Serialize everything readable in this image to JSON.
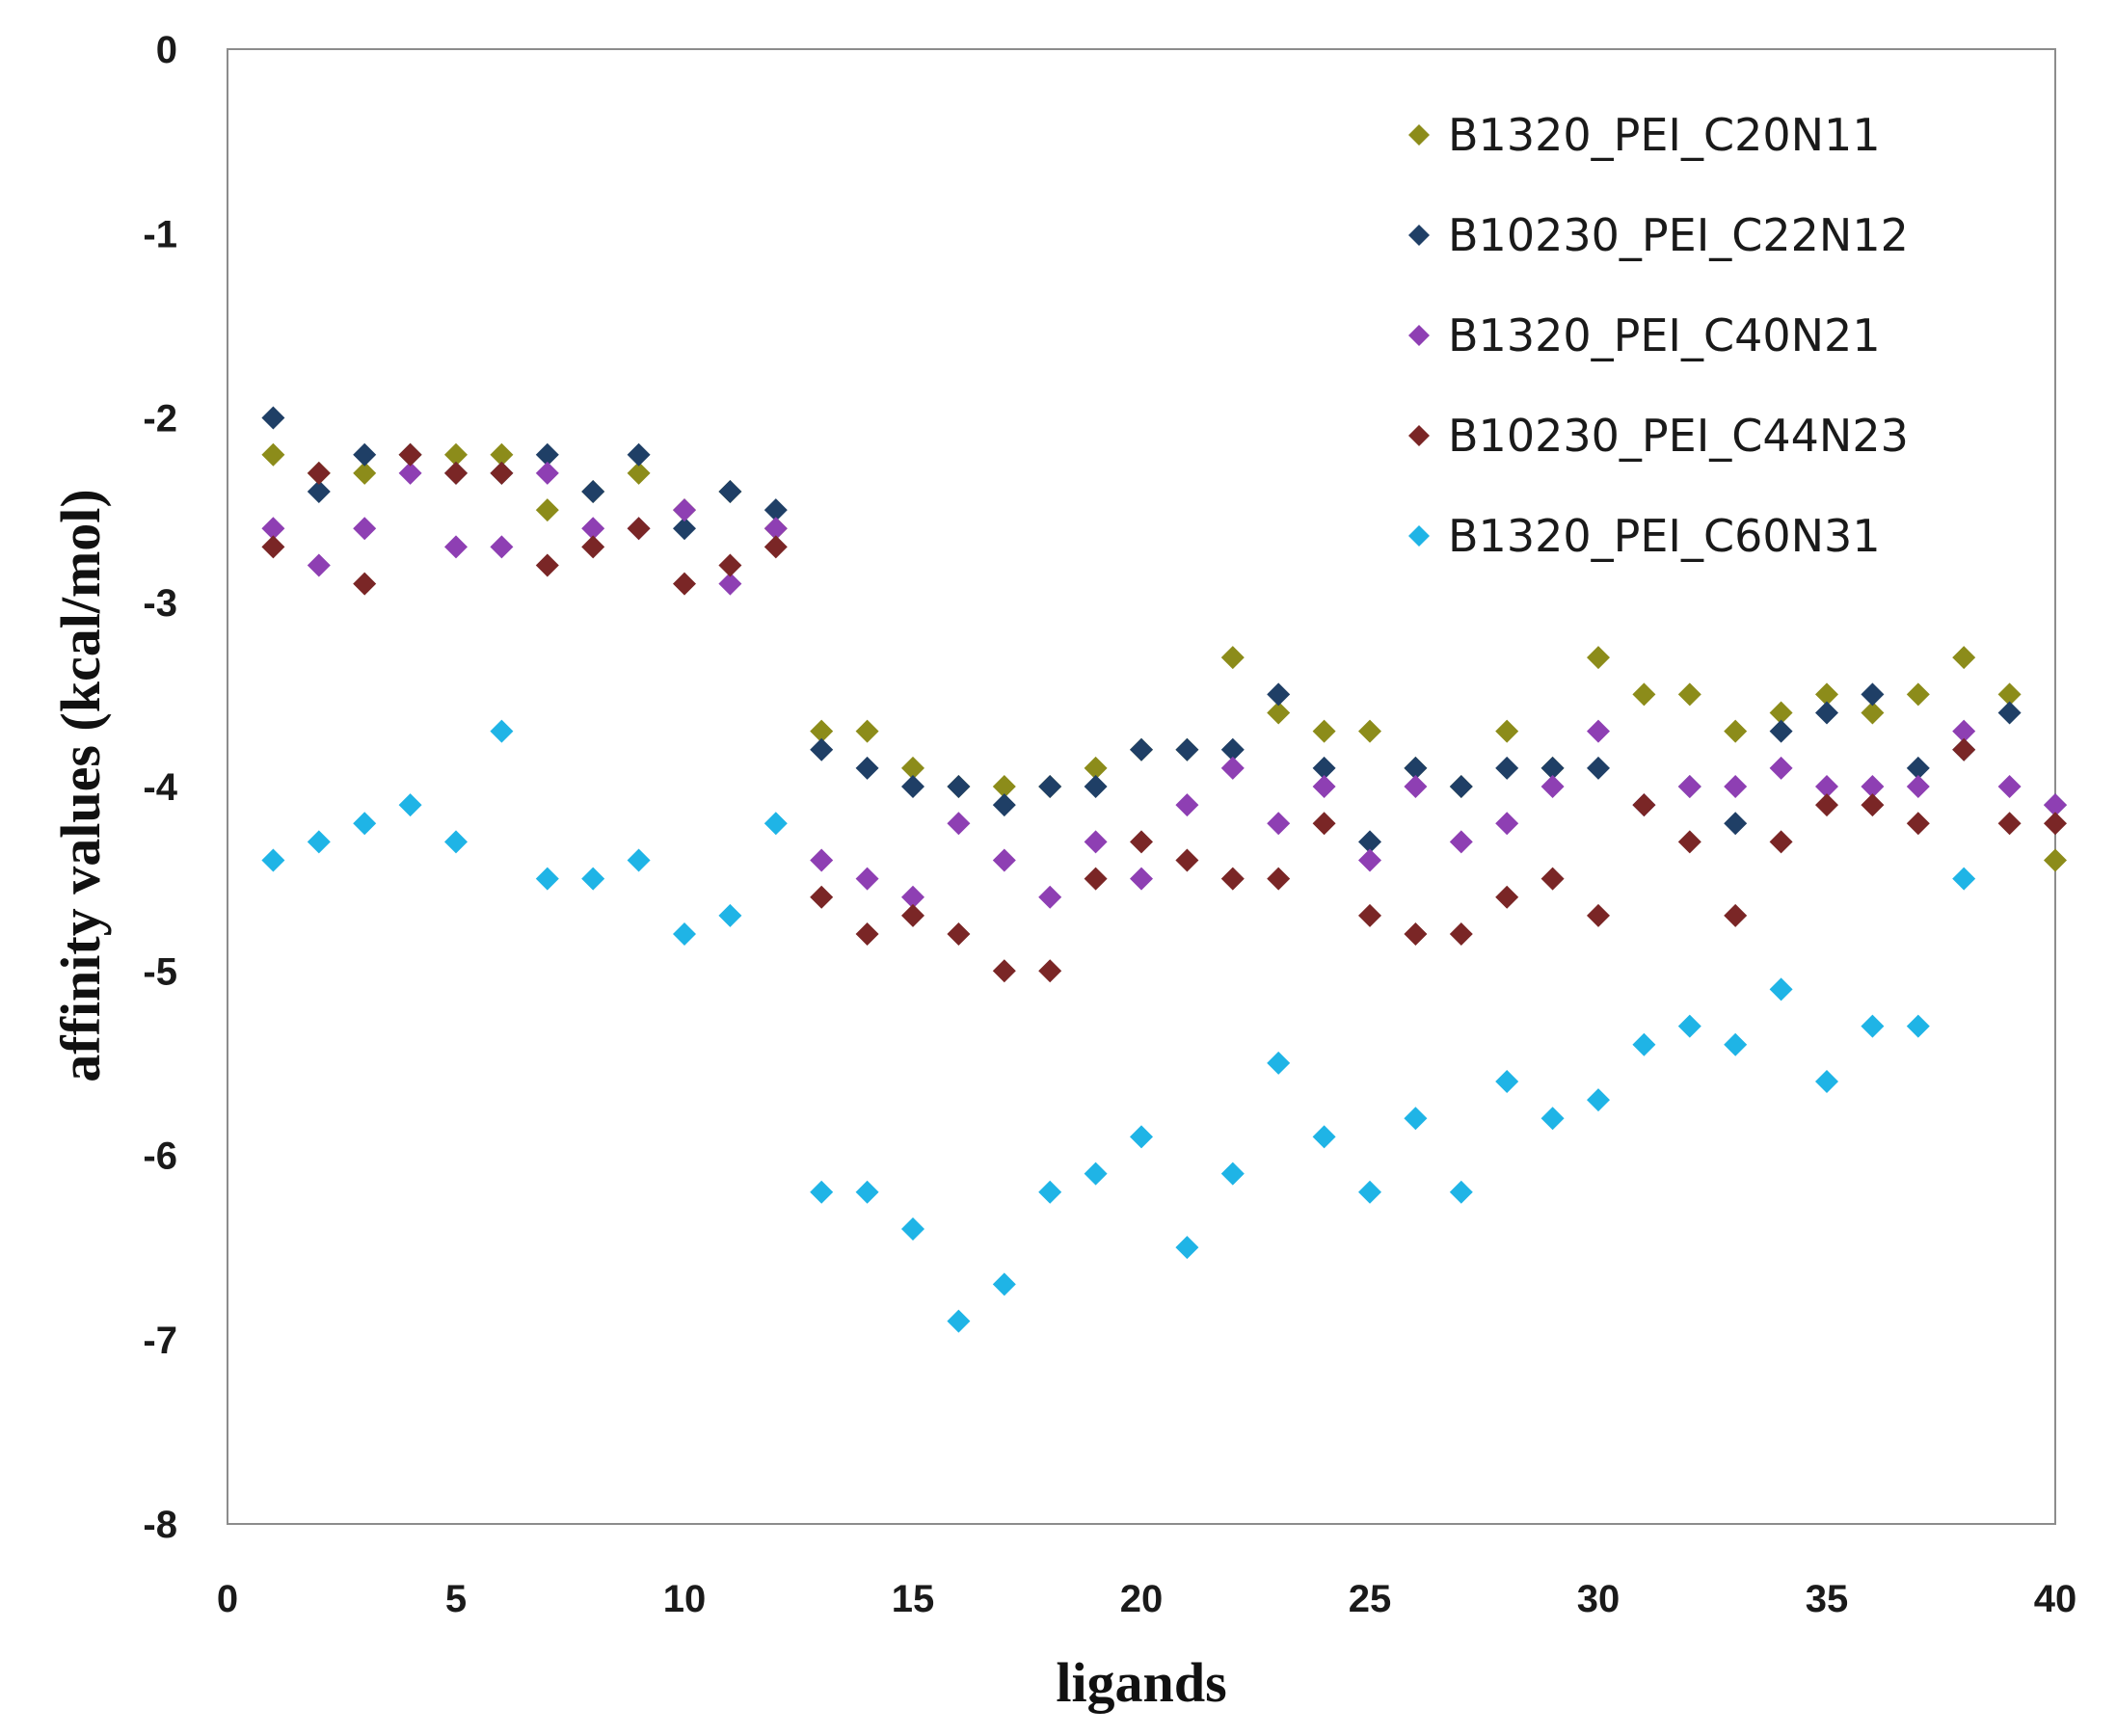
{
  "chart_data": {
    "type": "scatter",
    "title": "",
    "xlabel": "ligands",
    "ylabel": "affinity values (kcal/mol)",
    "xlim": [
      0,
      40
    ],
    "ylim": [
      -8,
      0
    ],
    "xticks": [
      0,
      5,
      10,
      15,
      20,
      25,
      30,
      35,
      40
    ],
    "yticks": [
      0,
      -1,
      -2,
      -3,
      -4,
      -5,
      -6,
      -7,
      -8
    ],
    "grid": false,
    "legend_position": "top-right",
    "marker": "diamond",
    "x": [
      1,
      2,
      3,
      4,
      5,
      6,
      7,
      8,
      9,
      10,
      11,
      12,
      13,
      14,
      15,
      16,
      17,
      18,
      19,
      20,
      21,
      22,
      23,
      24,
      25,
      26,
      27,
      28,
      29,
      30,
      31,
      32,
      33,
      34,
      35,
      36,
      37,
      38,
      39,
      40
    ],
    "series": [
      {
        "name": "B1320_PEI_C20N11",
        "color": "#8c8c1a",
        "values": [
          -2.2,
          -2.3,
          -2.3,
          -2.2,
          -2.2,
          -2.2,
          -2.5,
          -2.4,
          -2.3,
          -2.5,
          -2.4,
          -2.6,
          -3.7,
          -3.7,
          -3.9,
          -4.0,
          -4.0,
          -4.0,
          -3.9,
          -3.8,
          -3.8,
          -3.3,
          -3.6,
          -3.7,
          -3.7,
          -3.9,
          -4.0,
          -3.7,
          -3.9,
          -3.3,
          -3.5,
          -3.5,
          -3.7,
          -3.6,
          -3.5,
          -3.6,
          -3.5,
          -3.3,
          -3.5,
          -4.4
        ]
      },
      {
        "name": "B10230_PEI_C22N12",
        "color": "#1f3f66",
        "values": [
          -2.0,
          -2.4,
          -2.2,
          -2.2,
          -2.3,
          -2.3,
          -2.2,
          -2.4,
          -2.2,
          -2.6,
          -2.4,
          -2.5,
          -3.8,
          -3.9,
          -4.0,
          -4.0,
          -4.1,
          -4.0,
          -4.0,
          -3.8,
          -3.8,
          -3.8,
          -3.5,
          -3.9,
          -4.3,
          -3.9,
          -4.0,
          -3.9,
          -3.9,
          -3.9,
          -4.1,
          -4.0,
          -4.2,
          -3.7,
          -3.6,
          -3.5,
          -3.9,
          -3.8,
          -3.6,
          -4.1
        ]
      },
      {
        "name": "B1320_PEI_C40N21",
        "color": "#8e3fb3",
        "values": [
          -2.6,
          -2.8,
          -2.6,
          -2.3,
          -2.7,
          -2.7,
          -2.3,
          -2.6,
          -2.6,
          -2.5,
          -2.9,
          -2.6,
          -4.4,
          -4.5,
          -4.6,
          -4.2,
          -4.4,
          -4.6,
          -4.3,
          -4.5,
          -4.1,
          -3.9,
          -4.2,
          -4.0,
          -4.4,
          -4.0,
          -4.3,
          -4.2,
          -4.0,
          -3.7,
          -4.1,
          -4.0,
          -4.0,
          -3.9,
          -4.0,
          -4.0,
          -4.0,
          -3.7,
          -4.0,
          -4.1
        ]
      },
      {
        "name": "B10230_PEI_C44N23",
        "color": "#7a2626",
        "values": [
          -2.7,
          -2.3,
          -2.9,
          -2.2,
          -2.3,
          -2.3,
          -2.8,
          -2.7,
          -2.6,
          -2.9,
          -2.8,
          -2.7,
          -4.6,
          -4.8,
          -4.7,
          -4.8,
          -5.0,
          -5.0,
          -4.5,
          -4.3,
          -4.4,
          -4.5,
          -4.5,
          -4.2,
          -4.7,
          -4.8,
          -4.8,
          -4.6,
          -4.5,
          -4.7,
          -4.1,
          -4.3,
          -4.7,
          -4.3,
          -4.1,
          -4.1,
          -4.2,
          -3.8,
          -4.2,
          -4.2
        ]
      },
      {
        "name": "B1320_PEI_C60N31",
        "color": "#1fb4e6",
        "values": [
          -4.4,
          -4.3,
          -4.2,
          -4.1,
          -4.3,
          -3.7,
          -4.5,
          -4.5,
          -4.4,
          -4.8,
          -4.7,
          -4.2,
          -6.2,
          -6.2,
          -6.4,
          -6.9,
          -6.7,
          -6.2,
          -6.1,
          -5.9,
          -6.5,
          -6.1,
          -5.5,
          -5.9,
          -6.2,
          -5.8,
          -6.2,
          -5.6,
          -5.8,
          -5.7,
          -5.4,
          -5.3,
          -5.4,
          -5.1,
          -5.6,
          -5.3,
          -5.3,
          -4.5,
          null,
          null
        ]
      }
    ]
  }
}
